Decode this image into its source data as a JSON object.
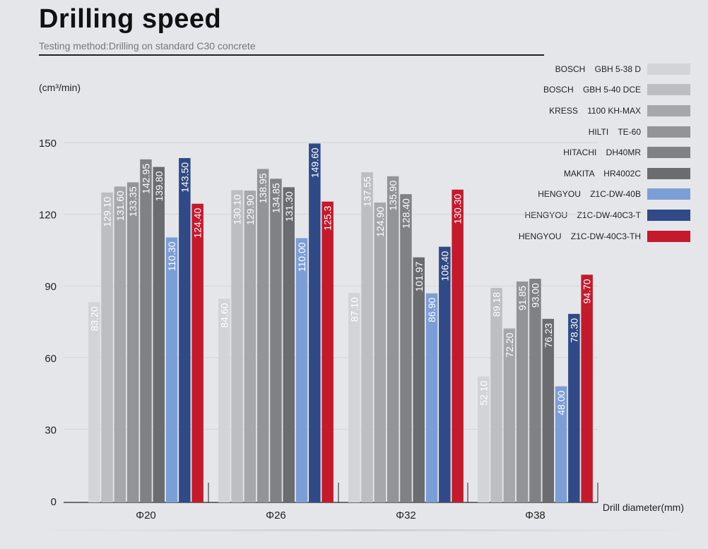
{
  "header": {
    "title": "Drilling speed",
    "subtitle": "Testing method:Drilling on standard C30 concrete"
  },
  "chart_data": {
    "type": "bar",
    "title": "Drilling speed",
    "subtitle": "Testing method:Drilling on standard C30 concrete",
    "ylabel": "(cm³/min)",
    "xlabel": "Drill diameter(mm)",
    "ylim": [
      0,
      150
    ],
    "yticks": [
      "0",
      "30",
      "60",
      "90",
      "120",
      "150"
    ],
    "grid": true,
    "legend_position": "top-right",
    "categories": [
      "Φ20",
      "Φ26",
      "Φ32",
      "Φ38"
    ],
    "series": [
      {
        "name": "BOSCH　GBH 5-38 D",
        "color": "#d3d4d7",
        "values": [
          83.2,
          84.6,
          87.1,
          52.1
        ],
        "labels": [
          "83.20",
          "84.60",
          "87.10",
          "52.10"
        ]
      },
      {
        "name": "BOSCH　GBH 5-40 DCE",
        "color": "#bdbec1",
        "values": [
          129.1,
          130.1,
          137.55,
          89.18
        ],
        "labels": [
          "129.10",
          "130.10",
          "137.55",
          "89.18"
        ]
      },
      {
        "name": "KRESS　1100 KH-MAX",
        "color": "#a6a7aa",
        "values": [
          131.6,
          129.9,
          124.9,
          72.2
        ],
        "labels": [
          "131.60",
          "129.90",
          "124.90",
          "72.20"
        ]
      },
      {
        "name": "HILTI　TE-60",
        "color": "#939497",
        "values": [
          133.35,
          138.95,
          135.9,
          91.85
        ],
        "labels": [
          "133.35",
          "138.95",
          "135.90",
          "91.85"
        ]
      },
      {
        "name": "HITACHI　DH40MR",
        "color": "#808185",
        "values": [
          142.95,
          134.85,
          128.4,
          93.0
        ],
        "labels": [
          "142.95",
          "134.85",
          "128.40",
          "93.00"
        ]
      },
      {
        "name": "MAKITA　HR4002C",
        "color": "#6b6c70",
        "values": [
          139.8,
          131.3,
          101.97,
          76.23
        ],
        "labels": [
          "139.80",
          "131.30",
          "101.97",
          "76.23"
        ]
      },
      {
        "name": "HENGYOU　Z1C-DW-40B",
        "color": "#7c9ed6",
        "values": [
          110.3,
          110.0,
          86.9,
          48.0
        ],
        "labels": [
          "110.30",
          "110.00",
          "86.90",
          "48.00"
        ]
      },
      {
        "name": "HENGYOU　Z1C-DW-40C3-T",
        "color": "#2f4a86",
        "values": [
          143.5,
          149.6,
          106.4,
          78.3
        ],
        "labels": [
          "143.50",
          "149.60",
          "106.40",
          "78.30"
        ]
      },
      {
        "name": "HENGYOU　Z1C-DW-40C3-TH",
        "color": "#c41a2c",
        "values": [
          124.4,
          125.3,
          130.3,
          94.7
        ],
        "labels": [
          "124.40",
          "125.3",
          "130.30",
          "94.70"
        ]
      }
    ]
  }
}
